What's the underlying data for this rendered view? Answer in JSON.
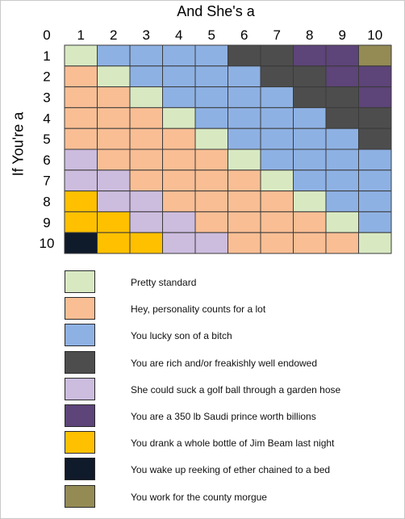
{
  "chart_data": {
    "type": "heatmap",
    "title": "And She's a",
    "ylabel": "If You're a",
    "corner_label": "0",
    "x_categories": [
      "1",
      "2",
      "3",
      "4",
      "5",
      "6",
      "7",
      "8",
      "9",
      "10"
    ],
    "y_categories": [
      "1",
      "2",
      "3",
      "4",
      "5",
      "6",
      "7",
      "8",
      "9",
      "10"
    ],
    "grid": true,
    "legend_position": "bottom",
    "legend": [
      {
        "key": "standard",
        "label": "Pretty standard",
        "color": "#d8e9c2"
      },
      {
        "key": "personality",
        "label": "Hey, personality counts for a lot",
        "color": "#f9be94"
      },
      {
        "key": "lucky",
        "label": "You lucky son of a bitch",
        "color": "#8eb1e4"
      },
      {
        "key": "rich",
        "label": "You are rich and/or freakishly well endowed",
        "color": "#4d4d4d"
      },
      {
        "key": "golfball",
        "label": "She could suck a golf ball through a garden hose",
        "color": "#ccbcde"
      },
      {
        "key": "prince",
        "label": "You are a 350 lb Saudi prince worth billions",
        "color": "#5d4479"
      },
      {
        "key": "jimbeam",
        "label": "You drank a whole bottle of Jim Beam last night",
        "color": "#ffc000"
      },
      {
        "key": "ether",
        "label": "You wake up reeking of ether chained to a bed",
        "color": "#0f1a2a"
      },
      {
        "key": "morgue",
        "label": "You work for the county morgue",
        "color": "#948a54"
      }
    ],
    "matrix": [
      [
        "standard",
        "lucky",
        "lucky",
        "lucky",
        "lucky",
        "rich",
        "rich",
        "prince",
        "prince",
        "morgue"
      ],
      [
        "personality",
        "standard",
        "lucky",
        "lucky",
        "lucky",
        "lucky",
        "rich",
        "rich",
        "prince",
        "prince"
      ],
      [
        "personality",
        "personality",
        "standard",
        "lucky",
        "lucky",
        "lucky",
        "lucky",
        "rich",
        "rich",
        "prince"
      ],
      [
        "personality",
        "personality",
        "personality",
        "standard",
        "lucky",
        "lucky",
        "lucky",
        "lucky",
        "rich",
        "rich"
      ],
      [
        "personality",
        "personality",
        "personality",
        "personality",
        "standard",
        "lucky",
        "lucky",
        "lucky",
        "lucky",
        "rich"
      ],
      [
        "golfball",
        "personality",
        "personality",
        "personality",
        "personality",
        "standard",
        "lucky",
        "lucky",
        "lucky",
        "lucky"
      ],
      [
        "golfball",
        "golfball",
        "personality",
        "personality",
        "personality",
        "personality",
        "standard",
        "lucky",
        "lucky",
        "lucky"
      ],
      [
        "jimbeam",
        "golfball",
        "golfball",
        "personality",
        "personality",
        "personality",
        "personality",
        "standard",
        "lucky",
        "lucky"
      ],
      [
        "jimbeam",
        "jimbeam",
        "golfball",
        "golfball",
        "personality",
        "personality",
        "personality",
        "personality",
        "standard",
        "lucky"
      ],
      [
        "ether",
        "jimbeam",
        "jimbeam",
        "golfball",
        "golfball",
        "personality",
        "personality",
        "personality",
        "personality",
        "standard"
      ]
    ]
  }
}
